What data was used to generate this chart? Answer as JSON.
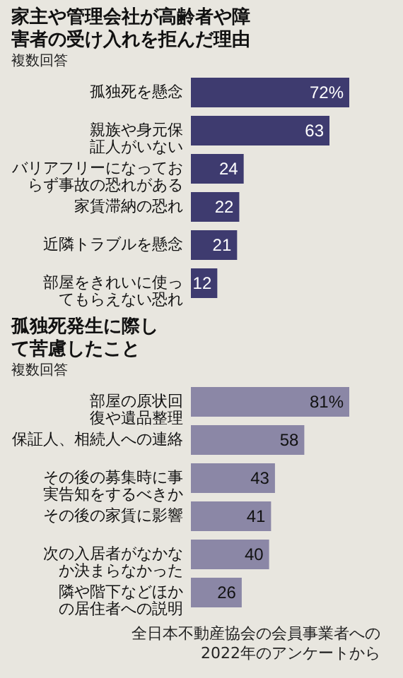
{
  "chart_data": [
    {
      "type": "bar",
      "orientation": "horizontal",
      "title": "家主や管理会社が高齢者や障害者の受け入れを拒んだ理由",
      "subtitle": "複数回答",
      "categories": [
        "孤独死を懸念",
        "親族や身元保証人がいない",
        "バリアフリーになっておらず事故の恐れがある",
        "家賃滞納の恐れ",
        "近隣トラブルを懸念",
        "部屋をきれいに使ってもらえない恐れ"
      ],
      "values": [
        72,
        63,
        24,
        22,
        21,
        12
      ],
      "value_labels": [
        "72%",
        "63",
        "24",
        "22",
        "21",
        "12"
      ],
      "color": "#3e3b6f"
    },
    {
      "type": "bar",
      "orientation": "horizontal",
      "title": "孤独死発生に際して苦慮したこと",
      "subtitle": "複数回答",
      "categories": [
        "部屋の原状回復や遺品整理",
        "保証人、相続人への連絡",
        "その後の募集時に事実告知をするべきか",
        "その後の家賃に影響",
        "次の入居者がなかなか決まらなかった",
        "隣や階下などほかの居住者への説明"
      ],
      "values": [
        81,
        58,
        43,
        41,
        40,
        26
      ],
      "value_labels": [
        "81%",
        "58",
        "43",
        "41",
        "40",
        "26"
      ],
      "color": "#8b87a6",
      "annotations": [
        "全日本不動産協会の会員事業者への\n2022年のアンケートから"
      ]
    }
  ]
}
